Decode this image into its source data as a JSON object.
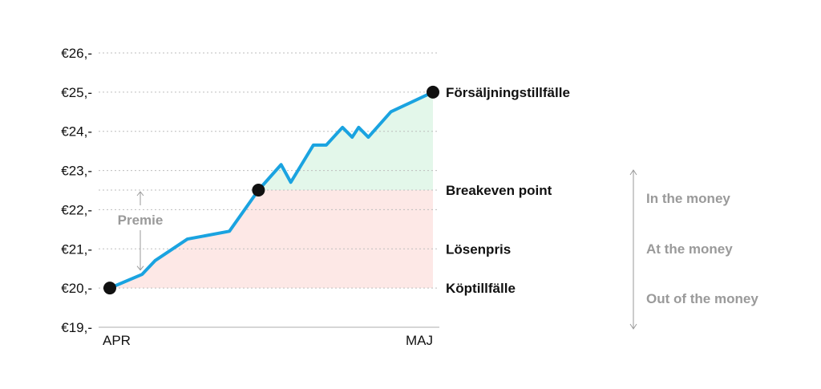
{
  "chart_data": {
    "type": "line",
    "x_start_label": "APR",
    "x_end_label": "MAJ",
    "ylim": [
      19,
      26
    ],
    "y_ticks": [
      {
        "value": 26,
        "label": "€26,-"
      },
      {
        "value": 25,
        "label": "€25,-"
      },
      {
        "value": 24,
        "label": "€24,-"
      },
      {
        "value": 23,
        "label": "€23,-"
      },
      {
        "value": 22,
        "label": "€22,-"
      },
      {
        "value": 21,
        "label": "€21,-"
      },
      {
        "value": 20,
        "label": "€20,-"
      },
      {
        "value": 19,
        "label": "€19,-"
      }
    ],
    "series": [
      {
        "x": [
          0,
          0.1,
          0.14,
          0.24,
          0.37,
          0.46,
          0.53,
          0.56,
          0.63,
          0.67,
          0.72,
          0.75,
          0.77,
          0.8,
          0.87,
          1.0
        ],
        "values": [
          20.0,
          20.35,
          20.7,
          21.25,
          21.45,
          22.5,
          23.15,
          22.7,
          23.65,
          23.65,
          24.1,
          23.85,
          24.1,
          23.85,
          24.5,
          25.0
        ]
      }
    ],
    "reference_lines": [
      {
        "value": 20.0,
        "label": "Köptillfälle"
      },
      {
        "value": 21.0,
        "label": "Lösenpris"
      },
      {
        "value": 22.5,
        "label": "Breakeven point"
      },
      {
        "value": 25.0,
        "label": "Försäljningstillfälle"
      }
    ],
    "markers": [
      {
        "x": 0,
        "value": 20.0
      },
      {
        "x": 0.46,
        "value": 22.5
      },
      {
        "x": 1.0,
        "value": 25.0
      }
    ],
    "premium_label": "Premie",
    "premium_range": [
      20.5,
      22.5
    ],
    "moneyness_labels": [
      "In the money",
      "At the money",
      "Out of the money"
    ],
    "colors": {
      "line": "#1aa3e0",
      "loss_fill": "#fde8e6",
      "profit_fill": "#e3f7ea",
      "marker": "#111111",
      "grid": "#bdbdbd",
      "axis": "#c8c8c8",
      "muted_text": "#9a9a9a"
    },
    "grid": true
  }
}
